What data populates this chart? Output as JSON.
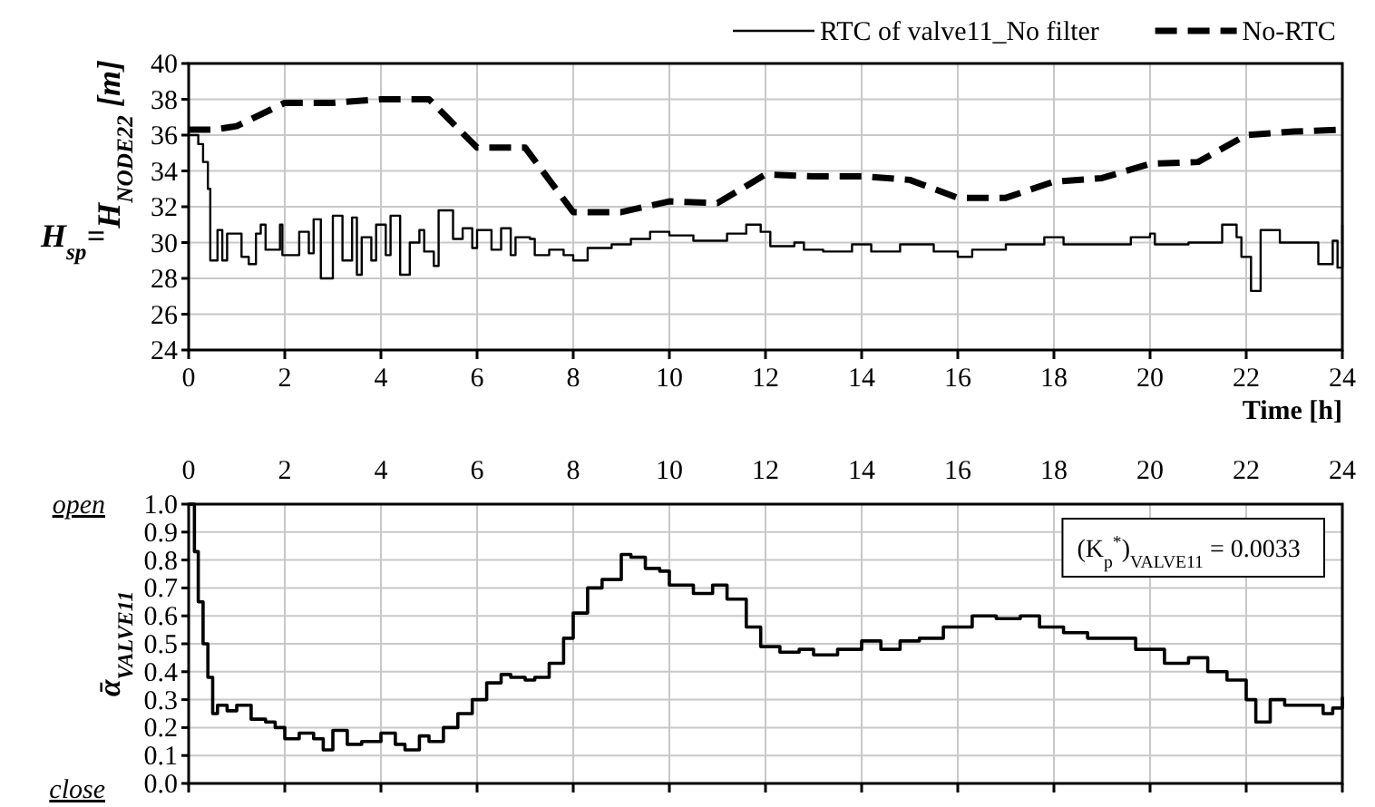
{
  "chart_data": [
    {
      "type": "step",
      "ylabel": "H$_{NODE22}$ [m]",
      "xlabel": "Time [h]",
      "legend": "top right",
      "grid": true,
      "xlim": [
        0,
        24
      ],
      "xticks": [
        0,
        2,
        4,
        6,
        8,
        10,
        12,
        14,
        16,
        18,
        20,
        22,
        24
      ],
      "ylim": [
        24,
        40
      ],
      "yticks": [
        24,
        26,
        28,
        30,
        32,
        34,
        36,
        38,
        40
      ],
      "annotations": [
        "H$_{sp}$="
      ],
      "series": [
        {
          "name": "RTC of valve11_No filter",
          "type": "step",
          "color": "#000000",
          "line_style": "solid",
          "x": [
            0,
            0.2,
            0.3,
            0.4,
            0.45,
            0.6,
            0.7,
            0.8,
            1.0,
            1.1,
            1.25,
            1.4,
            1.5,
            1.6,
            1.9,
            1.95,
            2.3,
            2.5,
            2.6,
            2.75,
            2.9,
            3.0,
            3.2,
            3.4,
            3.5,
            3.6,
            3.8,
            3.9,
            4.1,
            4.2,
            4.4,
            4.6,
            4.8,
            4.9,
            5.1,
            5.2,
            5.5,
            5.7,
            5.9,
            6.0,
            6.3,
            6.5,
            6.7,
            6.8,
            7.1,
            7.2,
            7.5,
            7.8,
            8.0,
            8.3,
            8.8,
            9.2,
            9.6,
            10.0,
            10.5,
            11.2,
            11.6,
            11.9,
            12.1,
            12.6,
            12.8,
            13.2,
            13.8,
            14.2,
            14.8,
            15.5,
            16.0,
            16.3,
            17.0,
            17.8,
            18.2,
            19.0,
            19.6,
            20.0,
            20.1,
            20.8,
            21.2,
            21.5,
            21.8,
            21.9,
            22.1,
            22.3,
            22.7,
            23.4,
            23.5,
            23.8,
            23.9,
            24
          ],
          "values": [
            36,
            35.5,
            34.5,
            33,
            29,
            30.7,
            29,
            30.5,
            30.5,
            29.2,
            28.8,
            30.5,
            31,
            29.6,
            31,
            29.3,
            30.6,
            29.4,
            31.3,
            28,
            28,
            31.5,
            29,
            31.4,
            28.2,
            30.3,
            29,
            31,
            29.3,
            31.5,
            28.2,
            30,
            30.7,
            29.5,
            28.7,
            31.8,
            30.2,
            30.8,
            29.7,
            30.7,
            29.6,
            30.8,
            29.3,
            30.3,
            30.2,
            29.3,
            29.6,
            29.3,
            29,
            29.7,
            29.9,
            30.2,
            30.6,
            30.4,
            30.1,
            30.5,
            31,
            30.6,
            29.8,
            30,
            29.6,
            29.5,
            29.9,
            29.5,
            29.9,
            29.5,
            29.2,
            29.6,
            29.9,
            30.3,
            29.9,
            29.9,
            30.3,
            30.5,
            29.9,
            30,
            30,
            31,
            30.3,
            29.2,
            27.3,
            30.7,
            30,
            30,
            28.8,
            30.1,
            28.6,
            31
          ]
        },
        {
          "name": "No-RTC",
          "type": "line",
          "color": "#000000",
          "line_style": "dashed",
          "x": [
            0,
            0.5,
            1,
            2,
            3,
            4,
            5,
            6,
            7,
            8,
            9,
            10,
            11,
            12,
            13,
            14,
            15,
            16,
            17,
            18,
            19,
            20,
            21,
            22,
            23,
            24
          ],
          "values": [
            36.3,
            36.3,
            36.5,
            37.8,
            37.8,
            38,
            38,
            35.3,
            35.3,
            31.7,
            31.7,
            32.3,
            32.2,
            33.8,
            33.7,
            33.7,
            33.5,
            32.5,
            32.5,
            33.4,
            33.6,
            34.4,
            34.5,
            36,
            36.2,
            36.3
          ]
        }
      ]
    },
    {
      "type": "step",
      "ylabel": "ᾱ$_{VALVE11}$",
      "grid": true,
      "xlim": [
        0,
        24
      ],
      "xticks": [
        0,
        2,
        4,
        6,
        8,
        10,
        12,
        14,
        16,
        18,
        20,
        22,
        24
      ],
      "ylim": [
        0,
        1
      ],
      "yticks": [
        {
          "value": 0,
          "label": "0.0"
        },
        {
          "value": 0.1,
          "label": "0.1"
        },
        {
          "value": 0.2,
          "label": "0.2"
        },
        {
          "value": 0.3,
          "label": "0.3"
        },
        {
          "value": 0.4,
          "label": "0.4"
        },
        {
          "value": 0.5,
          "label": "0.5"
        },
        {
          "value": 0.6,
          "label": "0.6"
        },
        {
          "value": 0.7,
          "label": "0.7"
        },
        {
          "value": 0.8,
          "label": "0.8"
        },
        {
          "value": 0.9,
          "label": "0.9"
        },
        {
          "value": 1,
          "label": "1.0"
        }
      ],
      "annotations": [
        "open",
        "close",
        "(K$_{p}$$^{*}$)$_{VALVE11}$ = 0.0033"
      ],
      "series": [
        {
          "type": "step",
          "color": "#000000",
          "line_style": "solid",
          "x": [
            0,
            0.1,
            0.12,
            0.2,
            0.3,
            0.4,
            0.5,
            0.6,
            0.8,
            1.0,
            1.3,
            1.6,
            1.8,
            2.0,
            2.3,
            2.6,
            2.8,
            3.0,
            3.3,
            3.6,
            4.0,
            4.3,
            4.5,
            4.8,
            5.0,
            5.3,
            5.6,
            5.9,
            6.2,
            6.5,
            6.7,
            7.0,
            7.2,
            7.5,
            7.8,
            8.0,
            8.3,
            8.6,
            9.0,
            9.2,
            9.5,
            9.8,
            10.0,
            10.5,
            10.9,
            11.2,
            11.6,
            11.9,
            12.3,
            12.7,
            13.0,
            13.5,
            14.0,
            14.4,
            14.8,
            15.2,
            15.7,
            16.3,
            16.8,
            17.3,
            17.7,
            18.2,
            18.7,
            19.3,
            19.7,
            20.3,
            20.8,
            21.2,
            21.6,
            22.0,
            22.2,
            22.5,
            22.8,
            23.3,
            23.6,
            23.8,
            24
          ],
          "values": [
            1,
            1,
            0.83,
            0.65,
            0.5,
            0.38,
            0.25,
            0.28,
            0.26,
            0.28,
            0.23,
            0.22,
            0.2,
            0.16,
            0.18,
            0.16,
            0.12,
            0.19,
            0.14,
            0.15,
            0.18,
            0.14,
            0.12,
            0.17,
            0.15,
            0.2,
            0.25,
            0.3,
            0.36,
            0.39,
            0.38,
            0.37,
            0.38,
            0.43,
            0.52,
            0.61,
            0.7,
            0.73,
            0.82,
            0.81,
            0.77,
            0.76,
            0.71,
            0.68,
            0.71,
            0.66,
            0.56,
            0.49,
            0.47,
            0.48,
            0.46,
            0.48,
            0.51,
            0.48,
            0.51,
            0.52,
            0.56,
            0.6,
            0.59,
            0.6,
            0.56,
            0.54,
            0.52,
            0.52,
            0.48,
            0.43,
            0.45,
            0.4,
            0.37,
            0.3,
            0.22,
            0.3,
            0.28,
            0.28,
            0.25,
            0.27,
            0.31
          ]
        }
      ]
    }
  ]
}
